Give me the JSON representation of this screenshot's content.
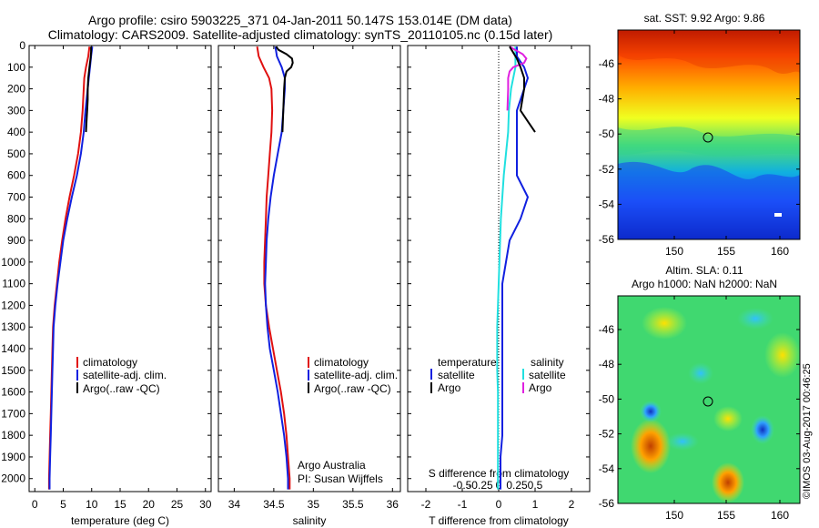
{
  "header": {
    "title_line1": "Argo profile: csiro 5903225_371 04-Jan-2011 50.147S 153.014E (DM data)",
    "title_line2": "Climatology: CARS2009. Satellite-adjusted climatology: synTS_20110105.nc (0.15d later)"
  },
  "colors": {
    "climatology": "#e01010",
    "satellite": "#1020e0",
    "argo": "#000000",
    "salinity_satellite": "#20e0e0",
    "salinity_argo": "#e020e0"
  },
  "legend": {
    "climatology": "climatology",
    "satellite_adj": "satellite-adj. clim.",
    "argo_raw": "Argo(..raw -QC)",
    "temperature": "temperature",
    "salinity": "salinity",
    "satellite": "satellite",
    "argo": "Argo"
  },
  "credits": {
    "line1": "Argo Australia",
    "line2": "PI: Susan Wijffels",
    "stamp": "©IMOS 03-Aug-2017 00:46:25"
  },
  "map_sst": {
    "title": "sat. SST: 9.92  Argo: 9.86",
    "lat_ticks": [
      "-46",
      "-48",
      "-50",
      "-52",
      "-54",
      "-56"
    ],
    "lon_ticks": [
      "150",
      "155",
      "160"
    ]
  },
  "map_sla": {
    "title_line1": "Altim. SLA: 0.11",
    "title_line2": "Argo h1000: NaN h2000: NaN",
    "lat_ticks": [
      "-46",
      "-48",
      "-50",
      "-52",
      "-54",
      "-56"
    ],
    "lon_ticks": [
      "150",
      "155",
      "160"
    ]
  },
  "chart_data": [
    {
      "type": "line",
      "name": "temperature profile",
      "xlabel": "temperature (deg C)",
      "ylabel": "",
      "xlim": [
        -1,
        31
      ],
      "ylim": [
        2060,
        0
      ],
      "x_ticks": [
        0,
        5,
        10,
        15,
        20,
        25,
        30
      ],
      "y_ticks": [
        0,
        100,
        200,
        300,
        400,
        500,
        600,
        700,
        800,
        900,
        1000,
        1100,
        1200,
        1300,
        1400,
        1500,
        1600,
        1700,
        1800,
        1900,
        2000
      ],
      "series": [
        {
          "name": "climatology",
          "depth": [
            5,
            50,
            100,
            150,
            200,
            300,
            400,
            500,
            600,
            700,
            800,
            900,
            1000,
            1100,
            1200,
            1300,
            1400,
            1500,
            1600,
            1700,
            1800,
            1900,
            2000,
            2050
          ],
          "values": [
            9.6,
            9.4,
            9.0,
            8.7,
            8.6,
            8.4,
            8.1,
            7.6,
            6.9,
            6.1,
            5.4,
            4.8,
            4.3,
            3.9,
            3.5,
            3.2,
            3.1,
            3.0,
            2.9,
            2.8,
            2.7,
            2.6,
            2.5,
            2.5
          ]
        },
        {
          "name": "satellite-adj. clim.",
          "depth": [
            5,
            50,
            100,
            150,
            200,
            300,
            400,
            500,
            600,
            700,
            800,
            900,
            1000,
            1100,
            1200,
            1300,
            1400,
            1500,
            1600,
            1700,
            1800,
            1900,
            2000,
            2050
          ],
          "values": [
            10.1,
            9.9,
            9.7,
            9.5,
            9.3,
            8.9,
            8.6,
            8.1,
            7.4,
            6.5,
            5.7,
            5.0,
            4.5,
            4.0,
            3.6,
            3.3,
            3.2,
            3.1,
            3.0,
            2.9,
            2.8,
            2.7,
            2.6,
            2.6
          ]
        },
        {
          "name": "Argo(..raw -QC)",
          "depth": [
            5,
            30,
            60,
            100,
            150,
            200,
            250,
            300,
            350,
            400
          ],
          "values": [
            9.9,
            9.9,
            9.8,
            9.6,
            9.4,
            9.3,
            9.3,
            9.2,
            9.1,
            9.0
          ]
        }
      ]
    },
    {
      "type": "line",
      "name": "salinity profile",
      "xlabel": "salinity",
      "ylabel": "",
      "xlim": [
        33.8,
        36.1
      ],
      "ylim": [
        2060,
        0
      ],
      "x_ticks": [
        34,
        34.5,
        35,
        35.5,
        36
      ],
      "series": [
        {
          "name": "climatology",
          "depth": [
            5,
            50,
            100,
            150,
            200,
            300,
            400,
            500,
            600,
            700,
            800,
            900,
            1000,
            1100,
            1200,
            1300,
            1400,
            1500,
            1600,
            1700,
            1800,
            1900,
            2000,
            2050
          ],
          "values": [
            34.29,
            34.31,
            34.37,
            34.44,
            34.47,
            34.48,
            34.47,
            34.45,
            34.43,
            34.41,
            34.4,
            34.39,
            34.38,
            34.38,
            34.4,
            34.44,
            34.49,
            34.54,
            34.59,
            34.63,
            34.66,
            34.68,
            34.7,
            34.7
          ]
        },
        {
          "name": "satellite-adj. clim.",
          "depth": [
            5,
            50,
            100,
            150,
            200,
            300,
            400,
            500,
            600,
            700,
            800,
            900,
            1000,
            1100,
            1200,
            1300,
            1400,
            1500,
            1600,
            1700,
            1800,
            1900,
            2000,
            2050
          ],
          "values": [
            34.52,
            34.54,
            34.6,
            34.64,
            34.64,
            34.62,
            34.6,
            34.55,
            34.5,
            34.46,
            34.43,
            34.41,
            34.4,
            34.39,
            34.4,
            34.42,
            34.45,
            34.5,
            34.55,
            34.59,
            34.63,
            34.66,
            34.68,
            34.68
          ]
        },
        {
          "name": "Argo(..raw -QC)",
          "depth": [
            5,
            20,
            40,
            60,
            80,
            100,
            120,
            150,
            200,
            300,
            400
          ],
          "values": [
            34.53,
            34.56,
            34.66,
            34.73,
            34.74,
            34.72,
            34.66,
            34.64,
            34.63,
            34.62,
            34.61
          ]
        }
      ]
    },
    {
      "type": "line",
      "name": "difference from climatology",
      "xlabel": "T difference from climatology",
      "xlabel_top": "S difference from climatology",
      "ylabel": "",
      "xlim": [
        -2.5,
        2.5
      ],
      "ylim": [
        2060,
        0
      ],
      "x_ticks_T": [
        -2,
        -1,
        0,
        1,
        2
      ],
      "x_ticks_S": [
        -0.5,
        -0.25,
        0,
        0.25,
        0.5
      ],
      "series": [
        {
          "name": "temperature satellite",
          "depth": [
            5,
            50,
            100,
            150,
            200,
            300,
            400,
            500,
            600,
            700,
            800,
            900,
            1000,
            1100,
            1200,
            1300,
            1400,
            1500,
            1600,
            1700,
            1800,
            1900,
            2000,
            2050
          ],
          "values": [
            0.5,
            0.5,
            0.7,
            0.8,
            0.7,
            0.5,
            0.5,
            0.5,
            0.5,
            0.8,
            0.6,
            0.3,
            0.2,
            0.1,
            0.1,
            0.1,
            0.1,
            0.1,
            0.1,
            0.1,
            0.1,
            0.05,
            0.05,
            0.05
          ]
        },
        {
          "name": "temperature Argo",
          "depth": [
            5,
            60,
            100,
            150,
            200,
            300,
            350,
            400
          ],
          "values": [
            0.3,
            0.5,
            0.6,
            0.7,
            0.7,
            0.6,
            0.8,
            1.0
          ]
        },
        {
          "name": "salinity satellite",
          "depth": [
            5,
            50,
            100,
            150,
            200,
            300,
            400,
            500,
            600,
            700,
            800,
            900,
            1000,
            1100,
            1200,
            1300,
            1400,
            1500,
            1600,
            1700,
            1800,
            1900,
            2000,
            2050
          ],
          "values": [
            0.23,
            0.23,
            0.23,
            0.2,
            0.17,
            0.14,
            0.13,
            0.1,
            0.07,
            0.05,
            0.03,
            0.02,
            0.01,
            0.0,
            -0.01,
            -0.02,
            -0.02,
            -0.02,
            -0.01,
            -0.01,
            -0.01,
            -0.01,
            -0.01,
            -0.01
          ]
        },
        {
          "name": "salinity Argo",
          "depth": [
            5,
            40,
            60,
            80,
            100,
            120,
            150,
            200,
            300
          ],
          "values": [
            0.15,
            0.33,
            0.38,
            0.35,
            0.2,
            0.15,
            0.13,
            0.13,
            0.12
          ]
        }
      ]
    }
  ]
}
